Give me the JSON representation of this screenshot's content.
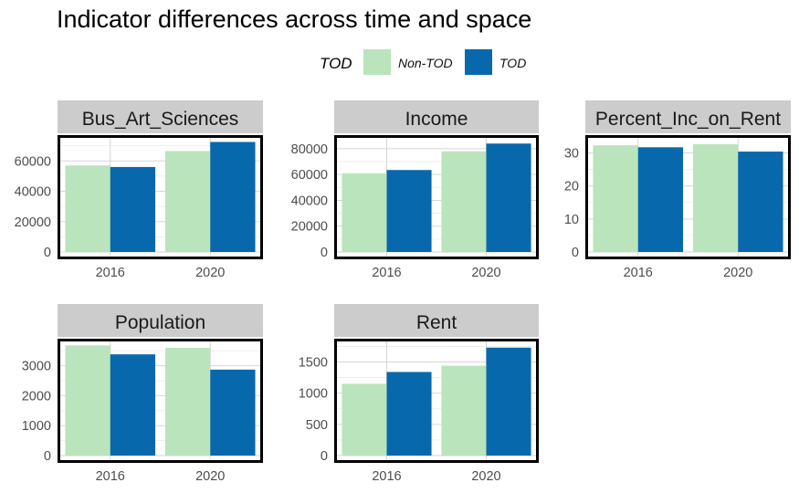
{
  "chart_data": {
    "type": "bar",
    "title": "Indicator differences across time and space",
    "legend": {
      "title": "TOD",
      "position": "top",
      "entries": [
        {
          "name": "Non-TOD",
          "color": "#bae4bc"
        },
        {
          "name": "TOD",
          "color": "#0868ac"
        }
      ]
    },
    "categories": [
      "2016",
      "2020"
    ],
    "facets": [
      {
        "name": "Bus_Art_Sciences",
        "ylim": [
          0,
          74000
        ],
        "yticks": [
          0,
          20000,
          40000,
          60000
        ],
        "series": [
          {
            "name": "Non-TOD",
            "values": [
              57000,
              66500
            ]
          },
          {
            "name": "TOD",
            "values": [
              56000,
              72500
            ]
          }
        ]
      },
      {
        "name": "Income",
        "ylim": [
          0,
          87000
        ],
        "yticks": [
          0,
          20000,
          40000,
          60000,
          80000
        ],
        "series": [
          {
            "name": "Non-TOD",
            "values": [
              61000,
              78000
            ]
          },
          {
            "name": "TOD",
            "values": [
              63500,
              84000
            ]
          }
        ]
      },
      {
        "name": "Percent_Inc_on_Rent",
        "ylim": [
          0,
          34
        ],
        "yticks": [
          0,
          10,
          20,
          30
        ],
        "series": [
          {
            "name": "Non-TOD",
            "values": [
              32.3,
              32.6
            ]
          },
          {
            "name": "TOD",
            "values": [
              31.7,
              30.4
            ]
          }
        ]
      },
      {
        "name": "Population",
        "ylim": [
          0,
          3750
        ],
        "yticks": [
          0,
          1000,
          2000,
          3000
        ],
        "series": [
          {
            "name": "Non-TOD",
            "values": [
              3680,
              3600
            ]
          },
          {
            "name": "TOD",
            "values": [
              3380,
              2870
            ]
          }
        ]
      },
      {
        "name": "Rent",
        "ylim": [
          0,
          1800
        ],
        "yticks": [
          0,
          500,
          1000,
          1500
        ],
        "series": [
          {
            "name": "Non-TOD",
            "values": [
              1150,
              1440
            ]
          },
          {
            "name": "TOD",
            "values": [
              1340,
              1730
            ]
          }
        ]
      }
    ],
    "grid": true
  }
}
